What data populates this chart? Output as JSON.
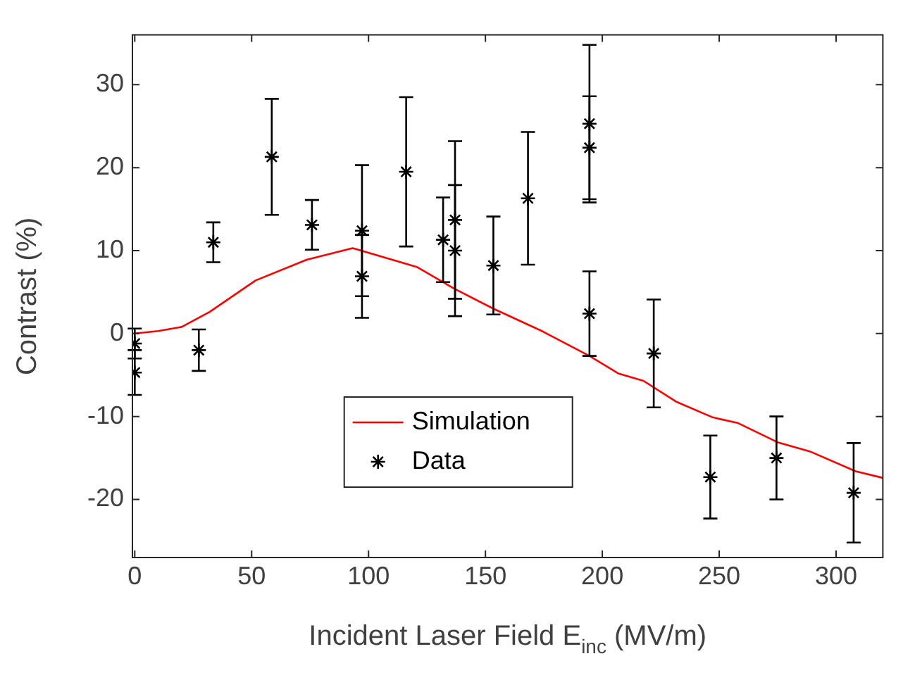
{
  "chart_data": {
    "type": "scatter",
    "xlabel": "Incident Laser Field E$_{inc}$ (MV/m)",
    "ylabel": "Contrast (%)",
    "xlim": [
      -1,
      320
    ],
    "ylim": [
      -27,
      36
    ],
    "xticks": [
      0,
      50,
      100,
      150,
      200,
      250,
      300
    ],
    "yticks": [
      -20,
      -10,
      0,
      10,
      20,
      30
    ],
    "grid": false,
    "legend": "bottom",
    "series": [
      {
        "name": "Simulation",
        "type": "line",
        "color": "#ff0000",
        "marker": "none",
        "line_style": "solid",
        "x": [
          0,
          10,
          20.1,
          32,
          51.7,
          73.5,
          93.2,
          120.9,
          136.7,
          153.4,
          174.2,
          194.5,
          206.8,
          217.6,
          231.5,
          247.2,
          258.1,
          274.9,
          288.7,
          308.4,
          320
        ],
        "values": [
          0,
          0.3,
          0.8,
          2.6,
          6.4,
          8.9,
          10.3,
          8.0,
          5.4,
          3.0,
          0.3,
          -2.7,
          -4.8,
          -5.7,
          -8.2,
          -10.1,
          -10.8,
          -13.1,
          -14.2,
          -16.6,
          -17.4
        ]
      },
      {
        "name": "Data",
        "color": "#000000",
        "marker": "cross",
        "x": [
          0,
          0,
          27.4,
          33.6,
          58.6,
          75.8,
          97.2,
          97.2,
          116.1,
          131.9,
          137,
          137,
          153.4,
          168.2,
          194.5,
          194.5,
          194.5,
          222,
          246.2,
          274.5,
          307.5
        ],
        "values": [
          -1.2,
          -4.7,
          -2.0,
          11.0,
          21.3,
          13.1,
          12.4,
          6.9,
          19.5,
          11.3,
          13.7,
          10.0,
          8.2,
          16.3,
          25.3,
          22.4,
          2.4,
          -2.4,
          -17.3,
          -15.0,
          -19.2
        ],
        "errors": [
          1.8,
          2.7,
          2.5,
          2.4,
          7,
          3,
          7.9,
          5,
          9,
          5.1,
          9.5,
          7.9,
          5.9,
          8,
          9.5,
          6.2,
          5.1,
          6.5,
          5,
          5,
          6
        ]
      }
    ]
  }
}
